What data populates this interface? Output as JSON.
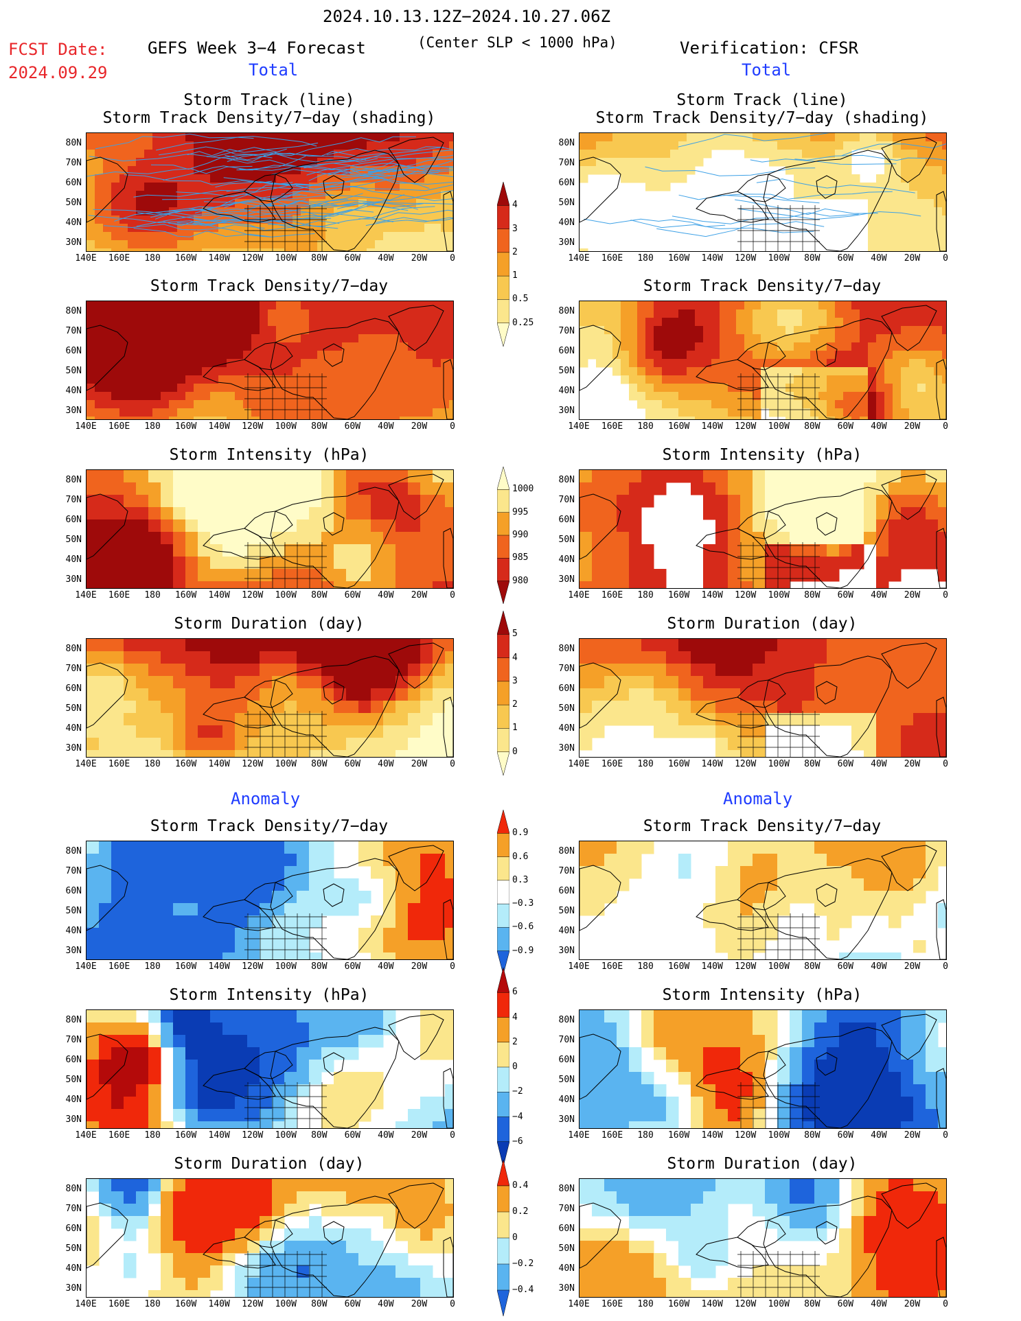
{
  "header": {
    "period": "2024.10.13.12Z−2024.10.27.06Z",
    "fcst_label": "FCST Date:",
    "fcst_date": "2024.09.29",
    "forecast_title": "GEFS Week 3−4 Forecast",
    "criterion": "(Center SLP < 1000 hPa)",
    "verification": "Verification: CFSR",
    "total_left": "Total",
    "total_right": "Total",
    "anomaly_left": "Anomaly",
    "anomaly_right": "Anomaly"
  },
  "panel_titles": {
    "track_line": "Storm Track (line)",
    "track_shading": "Storm Track Density/7−day (shading)",
    "density": "Storm Track Density/7−day",
    "intensity": "Storm Intensity (hPa)",
    "duration": "Storm Duration (day)"
  },
  "axes": {
    "y_ticks": [
      "80N",
      "70N",
      "60N",
      "50N",
      "40N",
      "30N"
    ],
    "x_ticks": [
      "140E",
      "160E",
      "180",
      "160W",
      "140W",
      "120W",
      "100W",
      "80W",
      "60W",
      "40W",
      "20W",
      "0"
    ]
  },
  "colorbars": {
    "density_total": {
      "labels": [
        "4",
        "3",
        "2",
        "1",
        "0.5",
        "0.25"
      ],
      "colors": [
        "#9e0a0a",
        "#d62a1a",
        "#f0641e",
        "#f5a028",
        "#f8c850",
        "#fbe68c",
        "#fffcc8"
      ]
    },
    "intensity_total": {
      "labels": [
        "1000",
        "995",
        "990",
        "985",
        "980"
      ],
      "colors": [
        "#fffcc8",
        "#fbe68c",
        "#f5a028",
        "#f0641e",
        "#d62a1a",
        "#9e0a0a"
      ]
    },
    "duration_total": {
      "labels": [
        "5",
        "4",
        "3",
        "2",
        "1",
        "0"
      ],
      "colors": [
        "#9e0a0a",
        "#d62a1a",
        "#f0641e",
        "#f5a028",
        "#f8c850",
        "#fbe68c",
        "#fffcc8"
      ]
    },
    "density_anom": {
      "labels": [
        "0.9",
        "0.6",
        "0.3",
        "−0.3",
        "−0.6",
        "−0.9"
      ],
      "colors": [
        "#f0280a",
        "#f5a028",
        "#fbe68c",
        "#ffffff",
        "#b4ecfa",
        "#5ab4f0",
        "#1e64dc"
      ]
    },
    "intensity_anom": {
      "labels": [
        "6",
        "4",
        "2",
        "0",
        "−2",
        "−4",
        "−6"
      ],
      "colors": [
        "#b40a0a",
        "#f0280a",
        "#f5a028",
        "#fbe68c",
        "#b4ecfa",
        "#5ab4f0",
        "#1e64dc",
        "#0a3cb4"
      ]
    },
    "duration_anom": {
      "labels": [
        "0.4",
        "0.2",
        "0",
        "−0.2",
        "−0.4"
      ],
      "colors": [
        "#f0280a",
        "#f5a028",
        "#fbe68c",
        "#b4ecfa",
        "#5ab4f0",
        "#1e64dc"
      ]
    }
  },
  "panel_colors": {
    "land_outline": "#000000",
    "track_line": "#3ca0e6",
    "ocean_white": "#ffffff"
  }
}
